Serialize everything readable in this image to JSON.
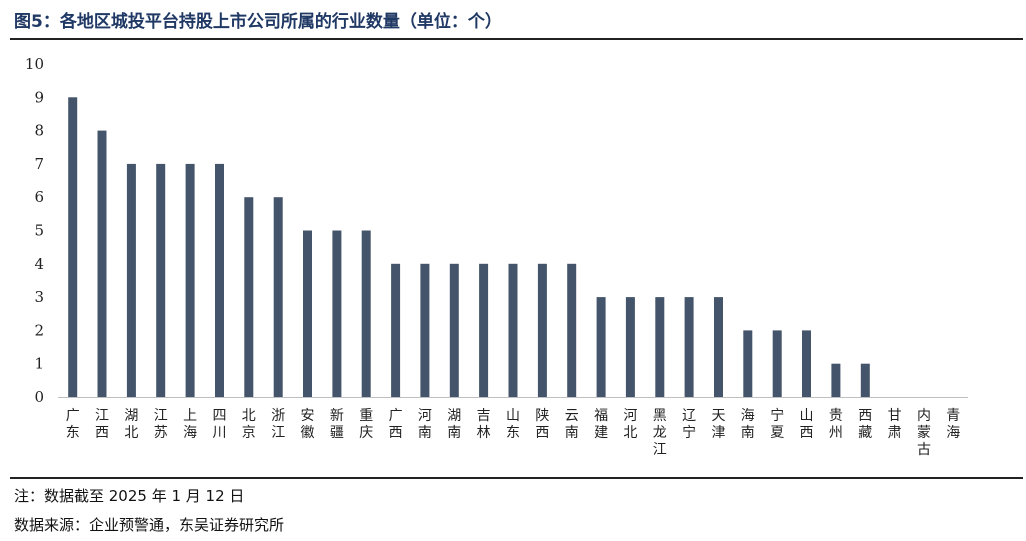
{
  "title": "图5：各地区城投平台持股上市公司所属的行业数量（单位：个）",
  "note": "注：数据截至 2025 年 1 月 12 日",
  "source": "数据来源：企业预警通，东吴证券研究所",
  "colors": {
    "bar": "#44546a",
    "axis": "#bfbfbf",
    "title": "#1f3864"
  },
  "chart_data": {
    "type": "bar",
    "title": "各地区城投平台持股上市公司所属的行业数量（单位：个）",
    "xlabel": "",
    "ylabel": "",
    "ylim": [
      0,
      10
    ],
    "yticks": [
      0,
      1,
      2,
      3,
      4,
      5,
      6,
      7,
      8,
      9,
      10
    ],
    "grid": false,
    "categories": [
      "广东",
      "江西",
      "湖北",
      "江苏",
      "上海",
      "四川",
      "北京",
      "浙江",
      "安徽",
      "新疆",
      "重庆",
      "广西",
      "河南",
      "湖南",
      "吉林",
      "山东",
      "陕西",
      "云南",
      "福建",
      "河北",
      "黑龙江",
      "辽宁",
      "天津",
      "海南",
      "宁夏",
      "山西",
      "贵州",
      "西藏",
      "甘肃",
      "内蒙古",
      "青海"
    ],
    "values": [
      9,
      8,
      7,
      7,
      7,
      7,
      6,
      6,
      5,
      5,
      5,
      4,
      4,
      4,
      4,
      4,
      4,
      4,
      3,
      3,
      3,
      3,
      3,
      2,
      2,
      2,
      1,
      1,
      0,
      0,
      0
    ]
  }
}
